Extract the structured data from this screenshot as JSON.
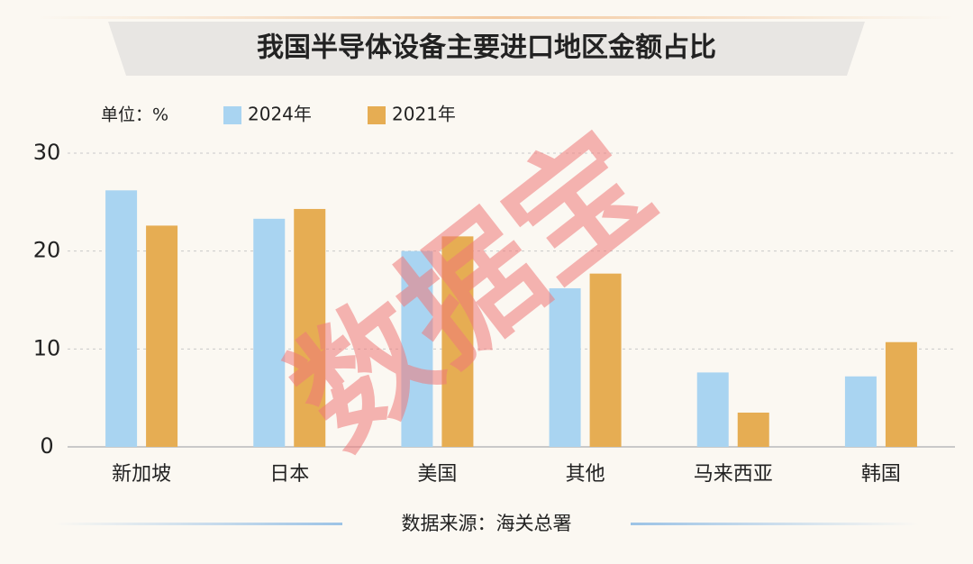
{
  "chart_data": {
    "type": "bar",
    "title": "我国半导体设备主要进口地区金额占比",
    "unit_label": "单位：%",
    "source": "数据来源：海关总署",
    "watermark": "数据宝",
    "categories": [
      "新加坡",
      "日本",
      "美国",
      "其他",
      "马来西亚",
      "韩国"
    ],
    "series": [
      {
        "name": "2024年",
        "color": "#a9d4f1",
        "values": [
          26.2,
          23.3,
          20.0,
          16.2,
          7.6,
          7.2
        ]
      },
      {
        "name": "2021年",
        "color": "#e6ad53",
        "values": [
          22.6,
          24.3,
          21.5,
          17.7,
          3.5,
          10.7
        ]
      }
    ],
    "ylim": [
      0,
      30
    ],
    "yticks": [
      0,
      10,
      20,
      30
    ],
    "grid": true
  }
}
